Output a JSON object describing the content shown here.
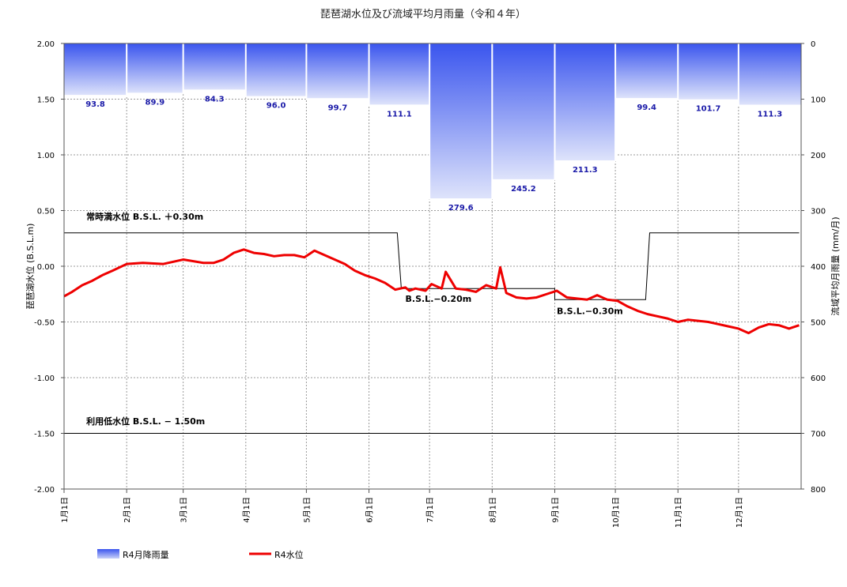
{
  "chart_data": {
    "type": "bar+line",
    "title": "琵琶湖水位及び流域平均月雨量（令和４年）",
    "y_left_label": "琵琶湖水位 (B.S.L.m)",
    "y_right_label": "流域平均月雨量 (mm/月)",
    "y_left_range": [
      -2.0,
      2.0
    ],
    "y_left_ticks": [
      "2.00",
      "1.50",
      "1.00",
      "0.50",
      "0.00",
      "-0.50",
      "-1.00",
      "-1.50",
      "-2.00"
    ],
    "y_right_range": [
      0,
      800
    ],
    "y_right_inverted": true,
    "y_right_ticks": [
      "0",
      "100",
      "200",
      "300",
      "400",
      "500",
      "600",
      "700",
      "800"
    ],
    "x_ticks": [
      "1月1日",
      "2月1日",
      "3月1日",
      "4月1日",
      "5月1日",
      "6月1日",
      "7月1日",
      "8月1日",
      "9月1日",
      "10月1日",
      "11月1日",
      "12月1日"
    ],
    "grid": true,
    "rainfall": {
      "name": "R4月降雨量",
      "color": "#3a55ee",
      "values": [
        93.8,
        89.9,
        84.3,
        96.0,
        99.7,
        111.1,
        279.6,
        245.2,
        211.3,
        99.4,
        101.7,
        111.3
      ],
      "labels": [
        "93.8",
        "89.9",
        "84.3",
        "96.0",
        "99.7",
        "111.1",
        "279.6",
        "245.2",
        "211.3",
        "99.4",
        "101.7",
        "111.3"
      ]
    },
    "water_level": {
      "name": "R4水位",
      "color": "#ee0000",
      "days": [
        1,
        5,
        10,
        15,
        20,
        25,
        32,
        40,
        50,
        60,
        70,
        75,
        80,
        85,
        90,
        95,
        100,
        105,
        110,
        115,
        120,
        125,
        130,
        135,
        140,
        145,
        150,
        155,
        160,
        165,
        170,
        172,
        175,
        180,
        183,
        188,
        190,
        195,
        200,
        205,
        210,
        215,
        217,
        220,
        225,
        230,
        235,
        240,
        245,
        250,
        255,
        260,
        265,
        270,
        275,
        280,
        285,
        290,
        295,
        300,
        305,
        310,
        315,
        320,
        325,
        330,
        335,
        340,
        345,
        350,
        355,
        360,
        365
      ],
      "values": [
        -0.27,
        -0.23,
        -0.17,
        -0.13,
        -0.08,
        -0.04,
        0.02,
        0.03,
        0.02,
        0.06,
        0.03,
        0.03,
        0.06,
        0.12,
        0.15,
        0.12,
        0.11,
        0.09,
        0.1,
        0.1,
        0.08,
        0.14,
        0.1,
        0.06,
        0.02,
        -0.04,
        -0.08,
        -0.11,
        -0.15,
        -0.21,
        -0.19,
        -0.22,
        -0.2,
        -0.22,
        -0.16,
        -0.2,
        -0.05,
        -0.2,
        -0.21,
        -0.23,
        -0.17,
        -0.2,
        -0.01,
        -0.24,
        -0.28,
        -0.29,
        -0.28,
        -0.25,
        -0.22,
        -0.28,
        -0.29,
        -0.3,
        -0.26,
        -0.3,
        -0.31,
        -0.36,
        -0.4,
        -0.43,
        -0.45,
        -0.47,
        -0.5,
        -0.48,
        -0.49,
        -0.5,
        -0.52,
        -0.54,
        -0.56,
        -0.6,
        -0.55,
        -0.52,
        -0.53,
        -0.56,
        -0.53
      ]
    },
    "rule_line": {
      "days": [
        1,
        166,
        168,
        244,
        244,
        289,
        291,
        365
      ],
      "values": [
        0.3,
        0.3,
        -0.2,
        -0.2,
        -0.3,
        -0.3,
        0.3,
        0.3
      ]
    },
    "annotations": [
      {
        "text": "常時満水位 B.S.L. ＋0.30m",
        "day": 12,
        "value": 0.42
      },
      {
        "text": "B.S.L.−0.20m",
        "day": 170,
        "value": -0.32
      },
      {
        "text": "B.S.L.−0.30m",
        "day": 245,
        "value": -0.43
      },
      {
        "text": "利用低水位 B.S.L. − 1.50m",
        "day": 12,
        "value": -1.42
      }
    ],
    "low_water_line": -1.5,
    "legend": [
      {
        "name": "R4月降雨量",
        "type": "bar"
      },
      {
        "name": "R4水位",
        "type": "line"
      }
    ],
    "legend_position": "bottom-left"
  }
}
